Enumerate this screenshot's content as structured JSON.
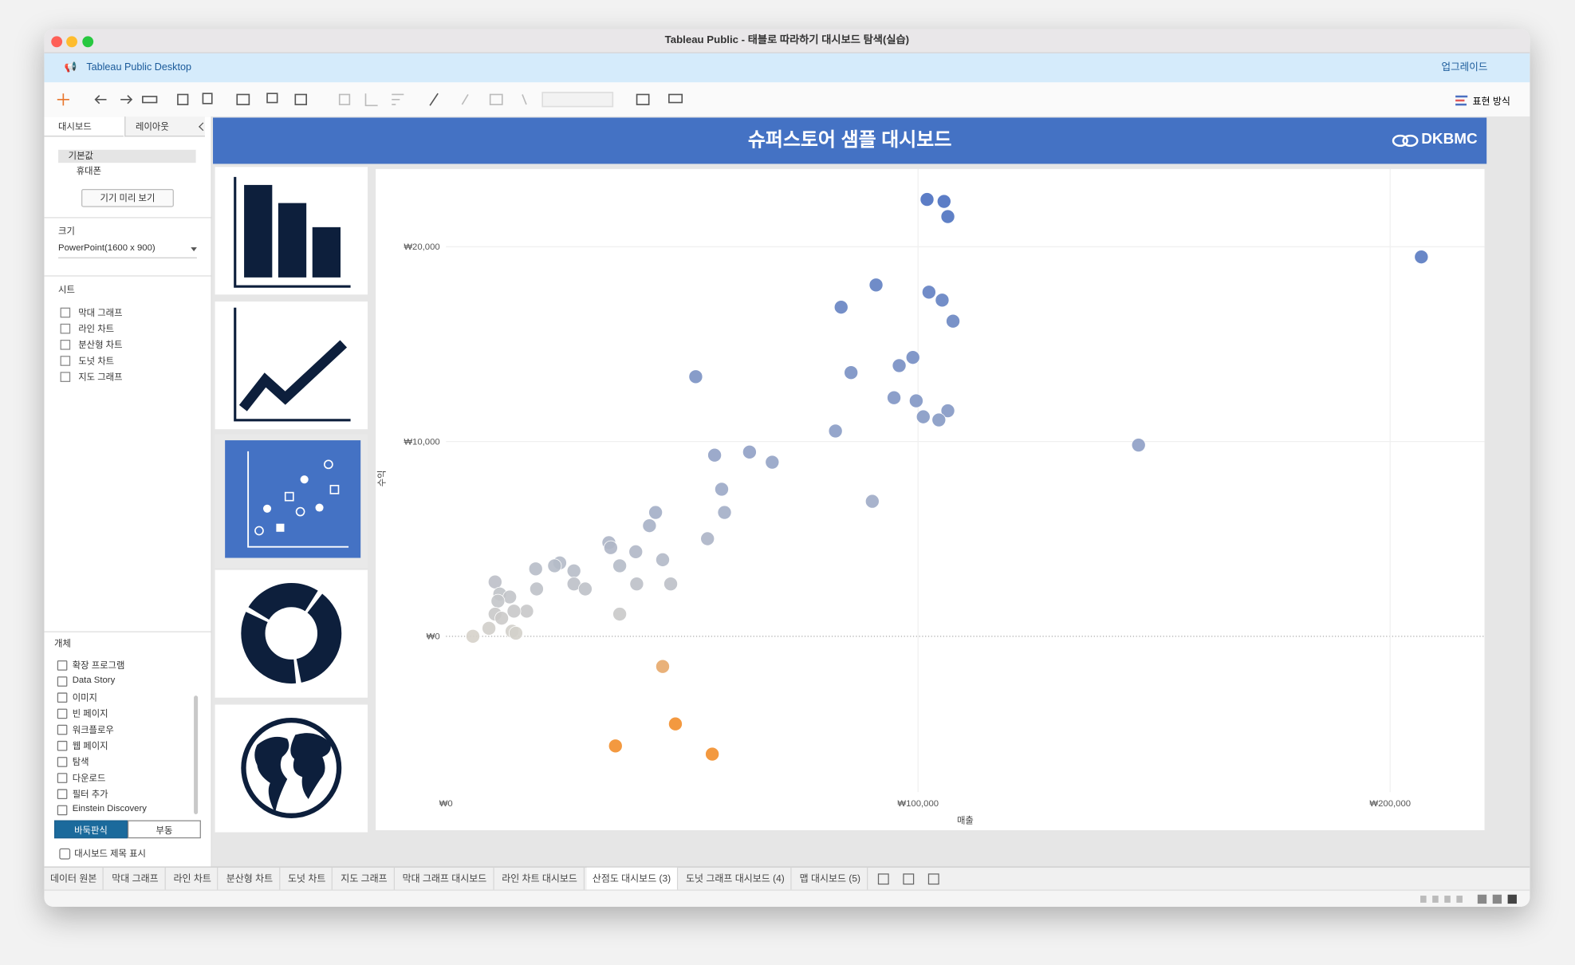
{
  "window_title": "Tableau Public - 태블로 따라하기 대시보드 탐색(실습)",
  "app_name": "Tableau Public Desktop",
  "upgrade": "업그레이드",
  "present_mode": "표현 방식",
  "left_panel": {
    "tabs": [
      "대시보드",
      "레이아웃"
    ],
    "device": [
      "기본값",
      "휴대폰"
    ],
    "device_preview": "기기 미리 보기",
    "size_label": "크기",
    "size_value": "PowerPoint(1600 x 900)",
    "sheets_label": "시트",
    "sheets": [
      "막대 그래프",
      "라인 차트",
      "분산형 차트",
      "도넛 차트",
      "지도 그래프"
    ],
    "objects_label": "개체",
    "objects": [
      "확장 프로그램",
      "Data Story",
      "이미지",
      "빈 페이지",
      "워크플로우",
      "웹 페이지",
      "탐색",
      "다운로드",
      "필터 추가",
      "Einstein Discovery"
    ],
    "layout_modes": [
      "바둑판식",
      "부동"
    ],
    "show_title": "대시보드 제목 표시"
  },
  "dashboard": {
    "title": "슈퍼스토어 샘플 대시보드",
    "logo": "DKBMC"
  },
  "bottom_tabs": [
    {
      "label": "데이터 원본"
    },
    {
      "label": "막대 그래프"
    },
    {
      "label": "라인 차트"
    },
    {
      "label": "분산형 차트"
    },
    {
      "label": "도넛 차트"
    },
    {
      "label": "지도 그래프"
    },
    {
      "label": "막대 그래프 대시보드"
    },
    {
      "label": "라인 차트 대시보드"
    },
    {
      "label": "산점도 대시보드 (3)",
      "selected": true
    },
    {
      "label": "도넛 그래프 대시보드 (4)"
    },
    {
      "label": "맵 대시보드 (5)"
    }
  ],
  "chart_data": {
    "type": "scatter",
    "x_label": "매출",
    "y_label": "수익",
    "x": [
      101900,
      105500,
      106300,
      206600,
      91100,
      102300,
      105100,
      107400,
      83700,
      52900,
      85800,
      96000,
      98900,
      94900,
      99600,
      106300,
      101100,
      104400,
      82500,
      146700,
      56900,
      64300,
      69100,
      58400,
      90300,
      59000,
      44400,
      43100,
      55400,
      34500,
      34900,
      40200,
      45900,
      24100,
      23000,
      19000,
      36800,
      27100,
      40400,
      47600,
      27100,
      29500,
      19200,
      10400,
      11400,
      13500,
      11000,
      17100,
      14400,
      10400,
      36800,
      11800,
      9100,
      14000,
      14800,
      5700,
      45900,
      48600,
      35900,
      56400
    ],
    "values": [
      22430,
      22330,
      21550,
      19480,
      18040,
      17670,
      17260,
      16180,
      16900,
      13330,
      13540,
      13900,
      14320,
      12250,
      12090,
      11580,
      11270,
      11110,
      10540,
      9820,
      9300,
      9460,
      8940,
      7550,
      6930,
      6360,
      6360,
      5680,
      5010,
      4810,
      4550,
      4340,
      3930,
      3770,
      3620,
      3460,
      3620,
      3360,
      2690,
      2690,
      2690,
      2430,
      2430,
      2790,
      2170,
      2020,
      1810,
      1290,
      1290,
      1140,
      1140,
      930,
      410,
      260,
      160,
      0,
      -1550,
      -4500,
      -5630,
      -6050
    ],
    "xlim": [
      0,
      220000
    ],
    "ylim": [
      -8000,
      24000
    ],
    "xticks": [
      {
        "value": 0,
        "label": "₩0"
      },
      {
        "value": 100000,
        "label": "₩100,000"
      },
      {
        "value": 200000,
        "label": "₩200,000"
      }
    ],
    "yticks": [
      {
        "value": 0,
        "label": "₩0"
      },
      {
        "value": 10000,
        "label": "₩10,000"
      },
      {
        "value": 20000,
        "label": "₩20,000"
      }
    ],
    "grid": true,
    "color_scale": {
      "negative": "#f28e2b",
      "zero": "#d6d2ca",
      "positive": "#4a6fc0"
    }
  }
}
